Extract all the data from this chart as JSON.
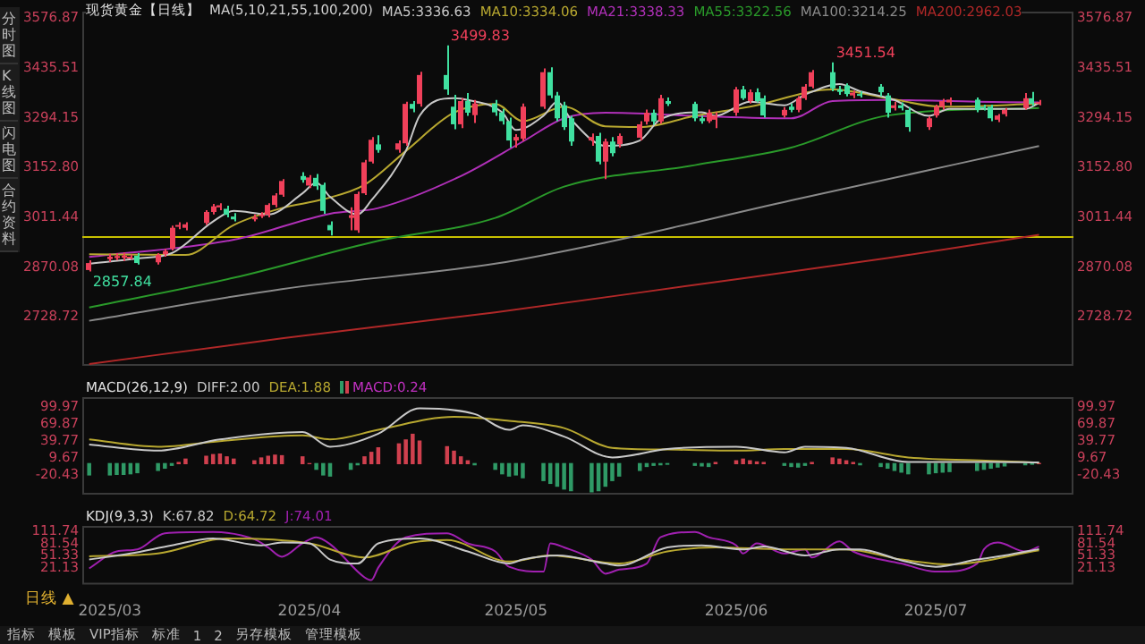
{
  "chart_data": [
    {
      "type": "candlestick",
      "title": "现货黄金【日线】",
      "subtitle": "MA(5,10,21,55,100,200)",
      "legend": "top",
      "tick_labels": "y",
      "x": [
        "2025-02-28",
        "2025-03-03",
        "2025-03-04",
        "2025-03-05",
        "2025-03-06",
        "2025-03-07",
        "2025-03-10",
        "2025-03-11",
        "2025-03-12",
        "2025-03-13",
        "2025-03-14",
        "2025-03-17",
        "2025-03-18",
        "2025-03-19",
        "2025-03-20",
        "2025-03-21",
        "2025-03-24",
        "2025-03-25",
        "2025-03-26",
        "2025-03-27",
        "2025-03-28",
        "2025-03-31",
        "2025-04-01",
        "2025-04-02",
        "2025-04-03",
        "2025-04-04",
        "2025-04-07",
        "2025-04-08",
        "2025-04-09",
        "2025-04-10",
        "2025-04-11",
        "2025-04-14",
        "2025-04-15",
        "2025-04-16",
        "2025-04-17",
        "2025-04-21",
        "2025-04-22",
        "2025-04-23",
        "2025-04-24",
        "2025-04-25",
        "2025-04-28",
        "2025-04-29",
        "2025-04-30",
        "2025-05-01",
        "2025-05-02",
        "2025-05-05",
        "2025-05-06",
        "2025-05-07",
        "2025-05-08",
        "2025-05-09",
        "2025-05-12",
        "2025-05-13",
        "2025-05-14",
        "2025-05-15",
        "2025-05-16",
        "2025-05-19",
        "2025-05-20",
        "2025-05-21",
        "2025-05-22",
        "2025-05-23",
        "2025-05-27",
        "2025-05-28",
        "2025-05-29",
        "2025-05-30",
        "2025-06-02",
        "2025-06-03",
        "2025-06-04",
        "2025-06-05",
        "2025-06-06",
        "2025-06-09",
        "2025-06-10",
        "2025-06-11",
        "2025-06-12",
        "2025-06-13",
        "2025-06-16",
        "2025-06-17",
        "2025-06-18",
        "2025-06-19",
        "2025-06-20",
        "2025-06-23",
        "2025-06-24",
        "2025-06-25",
        "2025-06-26",
        "2025-06-27",
        "2025-06-30",
        "2025-07-01",
        "2025-07-02",
        "2025-07-03",
        "2025-07-07",
        "2025-07-08",
        "2025-07-09",
        "2025-07-10",
        "2025-07-11",
        "2025-07-14",
        "2025-07-15",
        "2025-07-16"
      ],
      "ohlc": [
        [
          2862,
          2890,
          2857.84,
          2882
        ],
        [
          2893,
          2908,
          2885,
          2900
        ],
        [
          2896,
          2910,
          2890,
          2902
        ],
        [
          2897,
          2912,
          2888,
          2903
        ],
        [
          2899,
          2906,
          2892,
          2900
        ],
        [
          2903,
          2910,
          2878,
          2882
        ],
        [
          2884,
          2910,
          2878,
          2905
        ],
        [
          2907,
          2922,
          2900,
          2916
        ],
        [
          2923,
          2988,
          2918,
          2982
        ],
        [
          2985,
          2998,
          2978,
          2990
        ],
        [
          2982,
          2998,
          2975,
          2992
        ],
        [
          2996,
          3032,
          2990,
          3027
        ],
        [
          3027,
          3050,
          3020,
          3043
        ],
        [
          3040,
          3052,
          3032,
          3046
        ],
        [
          3036,
          3045,
          3012,
          3019
        ],
        [
          3014,
          3024,
          3000,
          3006
        ],
        [
          3006,
          3020,
          3000,
          3012
        ],
        [
          3016,
          3026,
          3010,
          3020
        ],
        [
          3019,
          3052,
          3012,
          3047
        ],
        [
          3047,
          3080,
          3040,
          3074
        ],
        [
          3076,
          3120,
          3070,
          3115
        ],
        [
          3129,
          3140,
          3110,
          3118
        ],
        [
          3102,
          3132,
          3095,
          3125
        ],
        [
          3124,
          3135,
          3090,
          3100
        ],
        [
          3104,
          3110,
          3022,
          3030
        ],
        [
          2990,
          3000,
          2960,
          2975
        ],
        [
          3010,
          3040,
          2975,
          3018
        ],
        [
          2975,
          3085,
          2968,
          3078
        ],
        [
          3080,
          3175,
          3075,
          3168
        ],
        [
          3170,
          3240,
          3165,
          3232
        ],
        [
          3219,
          3245,
          3195,
          3203
        ],
        [
          3204,
          3230,
          3195,
          3222
        ],
        [
          3222,
          3340,
          3215,
          3334
        ],
        [
          3334,
          3342,
          3310,
          3320
        ],
        [
          3334,
          3425,
          3326,
          3416
        ],
        [
          3416,
          3499.83,
          3360,
          3375
        ],
        [
          3326,
          3360,
          3262,
          3276
        ],
        [
          3276,
          3350,
          3265,
          3342
        ],
        [
          3342,
          3365,
          3300,
          3309
        ],
        [
          3302,
          3345,
          3280,
          3335
        ],
        [
          3335,
          3345,
          3300,
          3310
        ],
        [
          3310,
          3320,
          3275,
          3285
        ],
        [
          3285,
          3295,
          3210,
          3230
        ],
        [
          3230,
          3248,
          3210,
          3240
        ],
        [
          3235,
          3335,
          3228,
          3326
        ],
        [
          3326,
          3435,
          3320,
          3424
        ],
        [
          3424,
          3438,
          3350,
          3358
        ],
        [
          3358,
          3368,
          3285,
          3293
        ],
        [
          3330,
          3340,
          3260,
          3268
        ],
        [
          3293,
          3300,
          3215,
          3227
        ],
        [
          3230,
          3250,
          3215,
          3240
        ],
        [
          3243,
          3252,
          3162,
          3170
        ],
        [
          3170,
          3235,
          3120,
          3227
        ],
        [
          3227,
          3240,
          3185,
          3194
        ],
        [
          3220,
          3250,
          3210,
          3243
        ],
        [
          3238,
          3285,
          3230,
          3276
        ],
        [
          3284,
          3318,
          3275,
          3309
        ],
        [
          3309,
          3318,
          3275,
          3284
        ],
        [
          3284,
          3360,
          3278,
          3350
        ],
        [
          3342,
          3352,
          3328,
          3334
        ],
        [
          3334,
          3340,
          3285,
          3293
        ],
        [
          3293,
          3300,
          3278,
          3285
        ],
        [
          3285,
          3318,
          3280,
          3309
        ],
        [
          3289,
          3310,
          3265,
          3301
        ],
        [
          3309,
          3382,
          3300,
          3375
        ],
        [
          3375,
          3385,
          3345,
          3350
        ],
        [
          3342,
          3375,
          3335,
          3367
        ],
        [
          3367,
          3378,
          3338,
          3342
        ],
        [
          3350,
          3358,
          3295,
          3301
        ],
        [
          3301,
          3325,
          3295,
          3317
        ],
        [
          3326,
          3335,
          3310,
          3317
        ],
        [
          3317,
          3356,
          3310,
          3350
        ],
        [
          3350,
          3390,
          3345,
          3383
        ],
        [
          3383,
          3430,
          3378,
          3424
        ],
        [
          3424,
          3451.54,
          3370,
          3378
        ],
        [
          3375,
          3385,
          3360,
          3368
        ],
        [
          3386,
          3392,
          3355,
          3362
        ],
        [
          3358,
          3372,
          3350,
          3366
        ],
        [
          3362,
          3370,
          3352,
          3360
        ],
        [
          3383,
          3390,
          3355,
          3367
        ],
        [
          3358,
          3365,
          3295,
          3309
        ],
        [
          3322,
          3340,
          3315,
          3330
        ],
        [
          3330,
          3338,
          3315,
          3322
        ],
        [
          3317,
          3325,
          3255,
          3268
        ],
        [
          3268,
          3298,
          3260,
          3293
        ],
        [
          3301,
          3332,
          3295,
          3326
        ],
        [
          3326,
          3348,
          3318,
          3342
        ],
        [
          3338,
          3352,
          3330,
          3346
        ],
        [
          3346,
          3352,
          3310,
          3317
        ],
        [
          3326,
          3332,
          3315,
          3322
        ],
        [
          3326,
          3332,
          3285,
          3293
        ],
        [
          3289,
          3305,
          3282,
          3301
        ],
        [
          3305,
          3322,
          3298,
          3317
        ],
        [
          3322,
          3365,
          3318,
          3350
        ],
        [
          3350,
          3368,
          3328,
          3334
        ],
        [
          3334,
          3345,
          3330,
          3339
        ]
      ],
      "series": [
        {
          "type": "line",
          "name": "MA5:3336.63",
          "color": "#c8c8c8",
          "x": [
            "2025-02-28",
            "2025-03-07",
            "2025-03-12",
            "2025-03-18",
            "2025-03-21",
            "2025-03-26",
            "2025-03-31",
            "2025-04-02",
            "2025-04-04",
            "2025-04-08",
            "2025-04-10",
            "2025-04-15",
            "2025-04-17",
            "2025-04-22",
            "2025-04-24",
            "2025-04-29",
            "2025-05-01",
            "2025-05-05",
            "2025-05-07",
            "2025-05-09",
            "2025-05-14",
            "2025-05-19",
            "2025-05-22",
            "2025-05-28",
            "2025-05-30",
            "2025-06-04",
            "2025-06-09",
            "2025-06-12",
            "2025-06-17",
            "2025-06-20",
            "2025-06-25",
            "2025-06-30",
            "2025-07-03",
            "2025-07-09",
            "2025-07-14",
            "2025-07-16"
          ],
          "values": [
            2880,
            2895,
            2910,
            3000,
            3030,
            3020,
            3080,
            3110,
            3070,
            3020,
            3060,
            3200,
            3300,
            3350,
            3345,
            3310,
            3260,
            3300,
            3340,
            3290,
            3215,
            3230,
            3290,
            3310,
            3300,
            3340,
            3330,
            3360,
            3390,
            3370,
            3345,
            3300,
            3320,
            3320,
            3320,
            3336.63
          ]
        },
        {
          "type": "line",
          "name": "MA10:3334.06",
          "color": "#b8a830",
          "x": [
            "2025-02-28",
            "2025-03-14",
            "2025-03-21",
            "2025-03-28",
            "2025-04-03",
            "2025-04-09",
            "2025-04-15",
            "2025-04-22",
            "2025-04-28",
            "2025-05-02",
            "2025-05-08",
            "2025-05-14",
            "2025-05-19",
            "2025-05-27",
            "2025-06-04",
            "2025-06-16",
            "2025-06-24",
            "2025-07-02",
            "2025-07-16"
          ],
          "values": [
            2907,
            2905,
            2990,
            3038,
            3063,
            3104,
            3200,
            3309,
            3334,
            3285,
            3326,
            3270,
            3268,
            3300,
            3326,
            3375,
            3350,
            3326,
            3334.06
          ]
        },
        {
          "type": "line",
          "name": "MA21:3338.33",
          "color": "#b030b8",
          "x": [
            "2025-02-28",
            "2025-03-21",
            "2025-04-04",
            "2025-04-11",
            "2025-04-23",
            "2025-05-02",
            "2025-05-08",
            "2025-05-14",
            "2025-05-27",
            "2025-06-10",
            "2025-06-16",
            "2025-06-24",
            "2025-07-07",
            "2025-07-16"
          ],
          "values": [
            2899,
            2948,
            3022,
            3038,
            3129,
            3227,
            3293,
            3309,
            3300,
            3293,
            3342,
            3345,
            3340,
            3338.33
          ]
        },
        {
          "type": "line",
          "name": "MA55:3322.56",
          "color": "#2a9a2a",
          "x": [
            "2025-02-28",
            "2025-03-21",
            "2025-04-11",
            "2025-04-28",
            "2025-05-08",
            "2025-05-27",
            "2025-06-10",
            "2025-06-24",
            "2025-07-16"
          ],
          "values": [
            2756,
            2840,
            2945,
            3010,
            3099,
            3160,
            3210,
            3301,
            3322.56
          ]
        },
        {
          "type": "line",
          "name": "MA100:3214.25",
          "color": "#8a8a8a",
          "x": [
            "2025-02-28",
            "2025-03-28",
            "2025-04-28",
            "2025-05-14",
            "2025-06-10",
            "2025-07-16"
          ],
          "values": [
            2718,
            2808,
            2880,
            2940,
            3060,
            3214.25
          ]
        },
        {
          "type": "line",
          "name": "MA200:2962.03",
          "color": "#b02828",
          "x": [
            "2025-02-28",
            "2025-03-28",
            "2025-04-28",
            "2025-05-27",
            "2025-06-24",
            "2025-07-16"
          ],
          "values": [
            2595,
            2668,
            2742,
            2820,
            2896,
            2962.03
          ]
        }
      ],
      "xlim": [
        "2025-02-27",
        "2025-07-21"
      ],
      "ylim": [
        2590,
        3596
      ],
      "yticks": [
        3576.87,
        3435.51,
        3294.15,
        {
          "value": 3152.8,
          "label": "3152.80"
        },
        3011.44,
        2870.08,
        2728.72
      ],
      "y2lim": [
        2590,
        3596
      ],
      "y2ticks": [
        3576.87,
        3435.51,
        3294.15,
        {
          "value": 3152.8,
          "label": "3152.80"
        },
        3011.44,
        2870.08,
        2728.72
      ],
      "ref_lines": [
        {
          "axis": "y",
          "value": 2956,
          "color": "#c8c000"
        }
      ],
      "annotations": [
        {
          "text": "3499.83",
          "x": "2025-04-21",
          "y": 3499.83
        },
        {
          "text": "3451.54",
          "x": "2025-06-16",
          "y": 3451.54
        },
        {
          "text": "2857.84",
          "x": "2025-02-28",
          "y": 2857.84
        },
        "分时图",
        "K线图",
        "闪电图",
        "合约资料"
      ]
    },
    {
      "type": "line",
      "title": "MACD(26,12,9)",
      "legend": "top left",
      "tick_labels": "y",
      "x": [
        "2025-02-28",
        "2025-03-03",
        "2025-03-04",
        "2025-03-05",
        "2025-03-06",
        "2025-03-07",
        "2025-03-10",
        "2025-03-11",
        "2025-03-12",
        "2025-03-13",
        "2025-03-14",
        "2025-03-17",
        "2025-03-18",
        "2025-03-19",
        "2025-03-20",
        "2025-03-21",
        "2025-03-24",
        "2025-03-25",
        "2025-03-26",
        "2025-03-27",
        "2025-03-28",
        "2025-03-31",
        "2025-04-01",
        "2025-04-02",
        "2025-04-03",
        "2025-04-04",
        "2025-04-07",
        "2025-04-08",
        "2025-04-09",
        "2025-04-10",
        "2025-04-11",
        "2025-04-14",
        "2025-04-15",
        "2025-04-16",
        "2025-04-17",
        "2025-04-21",
        "2025-04-22",
        "2025-04-23",
        "2025-04-24",
        "2025-04-25",
        "2025-04-28",
        "2025-04-29",
        "2025-04-30",
        "2025-05-01",
        "2025-05-02",
        "2025-05-05",
        "2025-05-06",
        "2025-05-07",
        "2025-05-08",
        "2025-05-09",
        "2025-05-12",
        "2025-05-13",
        "2025-05-14",
        "2025-05-15",
        "2025-05-16",
        "2025-05-19",
        "2025-05-20",
        "2025-05-21",
        "2025-05-22",
        "2025-05-23",
        "2025-05-27",
        "2025-05-28",
        "2025-05-29",
        "2025-05-30",
        "2025-06-02",
        "2025-06-03",
        "2025-06-04",
        "2025-06-05",
        "2025-06-06",
        "2025-06-09",
        "2025-06-10",
        "2025-06-11",
        "2025-06-12",
        "2025-06-13",
        "2025-06-16",
        "2025-06-17",
        "2025-06-18",
        "2025-06-19",
        "2025-06-20",
        "2025-06-23",
        "2025-06-24",
        "2025-06-25",
        "2025-06-26",
        "2025-06-27",
        "2025-06-30",
        "2025-07-01",
        "2025-07-02",
        "2025-07-03",
        "2025-07-07",
        "2025-07-08",
        "2025-07-09",
        "2025-07-10",
        "2025-07-11",
        "2025-07-14",
        "2025-07-15",
        "2025-07-16"
      ],
      "series": [
        {
          "type": "line",
          "name": "DIFF:2.00",
          "color": "#c8c8c8",
          "x": [
            "2025-02-28",
            "2025-03-10",
            "2025-03-19",
            "2025-03-31",
            "2025-04-04",
            "2025-04-11",
            "2025-04-17",
            "2025-04-25",
            "2025-04-30",
            "2025-05-02",
            "2025-05-08",
            "2025-05-15",
            "2025-05-23",
            "2025-06-02",
            "2025-06-09",
            "2025-06-12",
            "2025-06-18",
            "2025-06-27",
            "2025-07-09",
            "2025-07-16"
          ],
          "values": [
            34,
            23,
            43,
            56,
            30,
            53,
            98,
            88,
            60,
            68,
            48,
            11,
            26,
            30,
            20,
            30,
            28,
            3,
            3,
            2
          ]
        },
        {
          "type": "line",
          "name": "DEA:1.88",
          "color": "#b8a830",
          "x": [
            "2025-02-28",
            "2025-03-10",
            "2025-03-19",
            "2025-03-31",
            "2025-04-04",
            "2025-04-11",
            "2025-04-22",
            "2025-04-30",
            "2025-05-08",
            "2025-05-15",
            "2025-05-23",
            "2025-06-02",
            "2025-06-09",
            "2025-06-18",
            "2025-06-27",
            "2025-07-09",
            "2025-07-16"
          ],
          "values": [
            43,
            30,
            40,
            50,
            43,
            60,
            83,
            76,
            63,
            28,
            25,
            23,
            26,
            26,
            11,
            5,
            1.88
          ]
        },
        {
          "type": "bar",
          "name": "MACD:0.24",
          "color": "#c030c0",
          "values": [
            -20,
            -20,
            -19,
            -19,
            -18,
            -16,
            -12,
            -8,
            -3,
            2,
            8,
            13,
            16,
            17,
            12,
            8,
            5,
            10,
            13,
            15,
            14,
            12,
            0,
            -10,
            -20,
            -22,
            -10,
            -2,
            12,
            20,
            28,
            35,
            42,
            52,
            40,
            30,
            22,
            12,
            5,
            -2,
            -10,
            -18,
            -22,
            -20,
            -25,
            -30,
            -35,
            -40,
            -45,
            -48,
            -50,
            -48,
            -40,
            -30,
            -22,
            -12,
            -5,
            -3,
            -2,
            -1,
            -3,
            -4,
            -5,
            2,
            5,
            8,
            5,
            3,
            2,
            -3,
            -5,
            -6,
            -3,
            2,
            10,
            8,
            5,
            2,
            -2,
            -5,
            -8,
            -12,
            -15,
            -18,
            -18,
            -16,
            -15,
            -14,
            -12,
            -10,
            -8,
            -6,
            -4,
            -2,
            -1,
            0.24
          ],
          "colors": [
            "#2f9a66",
            "#2f9a66",
            "#2f9a66",
            "#2f9a66",
            "#2f9a66",
            "#2f9a66",
            "#2f9a66",
            "#2f9a66",
            "#2f9a66",
            "#d0404e",
            "#d0404e",
            "#d0404e",
            "#d0404e",
            "#d0404e",
            "#d0404e",
            "#d0404e",
            "#d0404e",
            "#d0404e",
            "#d0404e",
            "#d0404e",
            "#d0404e",
            "#d0404e",
            "#d0404e",
            "#2f9a66",
            "#2f9a66",
            "#2f9a66",
            "#2f9a66",
            "#2f9a66",
            "#d0404e",
            "#d0404e",
            "#d0404e",
            "#d0404e",
            "#d0404e",
            "#d0404e",
            "#d0404e",
            "#d0404e",
            "#d0404e",
            "#d0404e",
            "#d0404e",
            "#2f9a66",
            "#2f9a66",
            "#2f9a66",
            "#2f9a66",
            "#2f9a66",
            "#2f9a66",
            "#2f9a66",
            "#2f9a66",
            "#2f9a66",
            "#2f9a66",
            "#2f9a66",
            "#2f9a66",
            "#2f9a66",
            "#2f9a66",
            "#2f9a66",
            "#2f9a66",
            "#2f9a66",
            "#2f9a66",
            "#2f9a66",
            "#2f9a66",
            "#2f9a66",
            "#2f9a66",
            "#2f9a66",
            "#2f9a66",
            "#d0404e",
            "#d0404e",
            "#d0404e",
            "#d0404e",
            "#d0404e",
            "#d0404e",
            "#2f9a66",
            "#2f9a66",
            "#2f9a66",
            "#2f9a66",
            "#d0404e",
            "#d0404e",
            "#d0404e",
            "#d0404e",
            "#d0404e",
            "#2f9a66",
            "#2f9a66",
            "#2f9a66",
            "#2f9a66",
            "#2f9a66",
            "#2f9a66",
            "#2f9a66",
            "#2f9a66",
            "#2f9a66",
            "#2f9a66",
            "#2f9a66",
            "#2f9a66",
            "#2f9a66",
            "#2f9a66",
            "#2f9a66",
            "#2f9a66",
            "#2f9a66",
            "#d0404e"
          ]
        }
      ],
      "xlim": [
        "2025-02-27",
        "2025-07-21"
      ],
      "ylim": [
        -55,
        118
      ],
      "yticks": [
        99.97,
        69.87,
        39.77,
        9.67,
        -20.43
      ],
      "y2lim": [
        -55,
        118
      ],
      "y2ticks": [
        99.97,
        69.87,
        39.77,
        9.67,
        -20.43
      ]
    },
    {
      "type": "line",
      "title": "KDJ(9,3,3)",
      "legend": "top left",
      "series": [
        {
          "type": "line",
          "name": "K:67.82",
          "color": "#c8c8c8",
          "x": [
            "2025-02-28",
            "2025-03-06",
            "2025-03-12",
            "2025-03-18",
            "2025-03-25",
            "2025-03-28",
            "2025-04-01",
            "2025-04-04",
            "2025-04-08",
            "2025-04-11",
            "2025-04-17",
            "2025-04-24",
            "2025-04-30",
            "2025-05-02",
            "2025-05-07",
            "2025-05-14",
            "2025-05-16",
            "2025-05-23",
            "2025-05-28",
            "2025-06-03",
            "2025-06-06",
            "2025-06-12",
            "2025-06-17",
            "2025-06-20",
            "2025-06-26",
            "2025-07-01",
            "2025-07-07",
            "2025-07-11",
            "2025-07-16"
          ],
          "values": [
            42,
            57,
            77,
            94,
            77,
            84,
            82,
            42,
            32,
            82,
            94,
            62,
            32,
            42,
            52,
            32,
            27,
            72,
            77,
            67,
            74,
            52,
            67,
            67,
            40,
            24,
            42,
            52,
            67.82
          ]
        },
        {
          "type": "line",
          "name": "D:64.72",
          "color": "#b8a830",
          "x": [
            "2025-02-28",
            "2025-03-10",
            "2025-03-20",
            "2025-04-01",
            "2025-04-09",
            "2025-04-16",
            "2025-04-21",
            "2025-04-30",
            "2025-05-06",
            "2025-05-16",
            "2025-05-23",
            "2025-05-30",
            "2025-06-09",
            "2025-06-18",
            "2025-06-26",
            "2025-07-03",
            "2025-07-16"
          ],
          "values": [
            50,
            57,
            94,
            82,
            47,
            84,
            90,
            37,
            52,
            32,
            62,
            72,
            67,
            67,
            42,
            30,
            64.72
          ]
        },
        {
          "type": "line",
          "name": "J:74.01",
          "color": "#a020b0",
          "x": [
            "2025-02-28",
            "2025-03-04",
            "2025-03-07",
            "2025-03-11",
            "2025-03-18",
            "2025-03-24",
            "2025-03-26",
            "2025-03-28",
            "2025-03-31",
            "2025-04-02",
            "2025-04-04",
            "2025-04-09",
            "2025-04-10",
            "2025-04-11",
            "2025-04-15",
            "2025-04-21",
            "2025-04-24",
            "2025-04-28",
            "2025-04-30",
            "2025-05-05",
            "2025-05-06",
            "2025-05-08",
            "2025-05-12",
            "2025-05-14",
            "2025-05-16",
            "2025-05-20",
            "2025-05-22",
            "2025-05-27",
            "2025-05-29",
            "2025-06-02",
            "2025-06-03",
            "2025-06-05",
            "2025-06-09",
            "2025-06-12",
            "2025-06-13",
            "2025-06-17",
            "2025-06-19",
            "2025-06-23",
            "2025-06-26",
            "2025-06-30",
            "2025-07-02",
            "2025-07-07",
            "2025-07-08",
            "2025-07-10",
            "2025-07-14",
            "2025-07-16"
          ],
          "values": [
            20,
            62,
            67,
            107,
            110,
            92,
            72,
            49,
            82,
            97,
            80,
            -2,
            -9,
            22,
            97,
            107,
            82,
            62,
            24,
            12,
            82,
            72,
            42,
            7,
            17,
            32,
            97,
            110,
            97,
            77,
            57,
            82,
            57,
            67,
            47,
            87,
            62,
            42,
            32,
            14,
            12,
            32,
            67,
            84,
            62,
            74.01
          ]
        }
      ],
      "xlim": [
        "2025-02-27",
        "2025-07-21"
      ],
      "xticks": [
        {
          "value": "2025-03-03",
          "label": "2025/03"
        },
        {
          "value": "2025-04-01",
          "label": "2025/04"
        },
        {
          "value": "2025-05-01",
          "label": "2025/05"
        },
        {
          "value": "2025-06-02",
          "label": "2025/06"
        },
        {
          "value": "2025-07-01",
          "label": "2025/07"
        }
      ],
      "ylim": [
        -20,
        125
      ],
      "yticks": [
        111.74,
        81.54,
        51.33,
        21.13
      ],
      "y2lim": [
        -20,
        125
      ],
      "y2ticks": [
        111.74,
        81.54,
        51.33,
        21.13
      ],
      "annotations": [
        "日线 ▲",
        "指标",
        "模板",
        "VIP指标",
        "标准",
        "1",
        "2",
        "另存模板",
        "管理模板"
      ]
    }
  ]
}
